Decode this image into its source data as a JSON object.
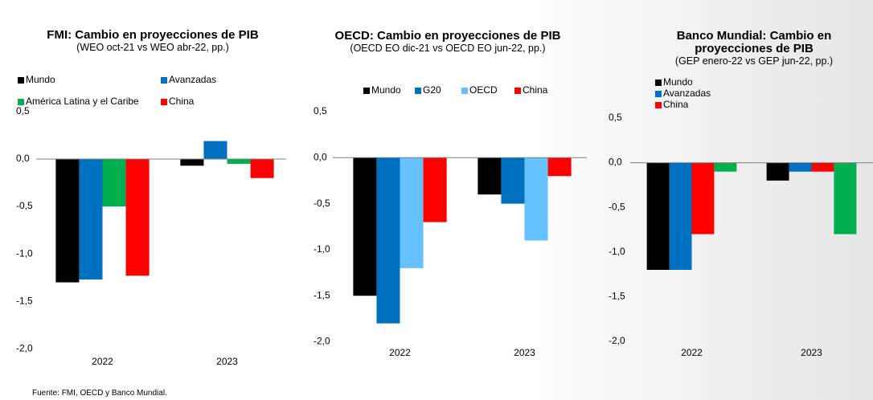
{
  "chart_data": [
    {
      "type": "bar",
      "title": "FMI: Cambio en proyecciones de PIB",
      "subtitle": "(WEO oct-21 vs WEO abr-22, pp.)",
      "categories": [
        "2022",
        "2023"
      ],
      "series": [
        {
          "name": "Mundo",
          "color": "#000000",
          "values": [
            -1.3,
            -0.07
          ]
        },
        {
          "name": "Avanzadas",
          "color": "#0070c0",
          "values": [
            -1.27,
            0.19
          ]
        },
        {
          "name": "América Latina y el Caribe",
          "color": "#00b050",
          "values": [
            -0.5,
            -0.05
          ]
        },
        {
          "name": "China",
          "color": "#ff0000",
          "values": [
            -1.23,
            -0.2
          ]
        }
      ],
      "ylim": [
        -2.1,
        0.5
      ],
      "yticks": [
        {
          "value": 0.5,
          "label": "0,5"
        },
        {
          "value": 0,
          "label": "0,0"
        },
        {
          "value": -0.5,
          "label": "-0,5"
        },
        {
          "value": -1,
          "label": "-1,0"
        },
        {
          "value": -1.5,
          "label": "-1,5"
        },
        {
          "value": -2,
          "label": "-2,0"
        }
      ]
    },
    {
      "type": "bar",
      "title": "OECD: Cambio en proyecciones de PIB",
      "subtitle": "(OECD EO dic-21 vs OECD EO jun-22, pp.)",
      "categories": [
        "2022",
        "2023"
      ],
      "series": [
        {
          "name": "Mundo",
          "color": "#000000",
          "values": [
            -1.5,
            -0.4
          ]
        },
        {
          "name": "G20",
          "color": "#0070c0",
          "values": [
            -1.8,
            -0.5
          ]
        },
        {
          "name": "OECD",
          "color": "#66c2ff",
          "values": [
            -1.2,
            -0.9
          ]
        },
        {
          "name": "China",
          "color": "#ff0000",
          "values": [
            -0.7,
            -0.2
          ]
        }
      ],
      "ylim": [
        -2.1,
        0.5
      ],
      "yticks": [
        {
          "value": 0.5,
          "label": "0,5"
        },
        {
          "value": 0,
          "label": "0,0"
        },
        {
          "value": -0.5,
          "label": "-0,5"
        },
        {
          "value": -1,
          "label": "-1,0"
        },
        {
          "value": -1.5,
          "label": "-1,5"
        },
        {
          "value": -2,
          "label": "-2,0"
        }
      ]
    },
    {
      "type": "bar",
      "title": "Banco Mundial: Cambio en proyecciones de PIB",
      "subtitle": "(GEP enero-22 vs GEP jun-22, pp.)",
      "categories": [
        "2022",
        "2023"
      ],
      "series": [
        {
          "name": "Mundo",
          "color": "#000000",
          "values": [
            -1.2,
            -0.2
          ]
        },
        {
          "name": "Avanzadas",
          "color": "#0070c0",
          "values": [
            -1.2,
            -0.1
          ]
        },
        {
          "name": "China",
          "color": "#ff0000",
          "values": [
            -0.8,
            -0.1
          ]
        },
        {
          "name": null,
          "color": "#00b050",
          "values": [
            -0.1,
            -0.8
          ]
        }
      ],
      "ylim": [
        -2.1,
        0.5
      ],
      "yticks": [
        {
          "value": 0.5,
          "label": "0,5"
        },
        {
          "value": 0,
          "label": "0,0"
        },
        {
          "value": -0.5,
          "label": "-0,5"
        },
        {
          "value": -1,
          "label": "-1,0"
        },
        {
          "value": -1.5,
          "label": "-1,5"
        },
        {
          "value": -2,
          "label": "-2,0"
        }
      ]
    }
  ],
  "source": "Fuente: FMI, OECD y Banco Mundial."
}
